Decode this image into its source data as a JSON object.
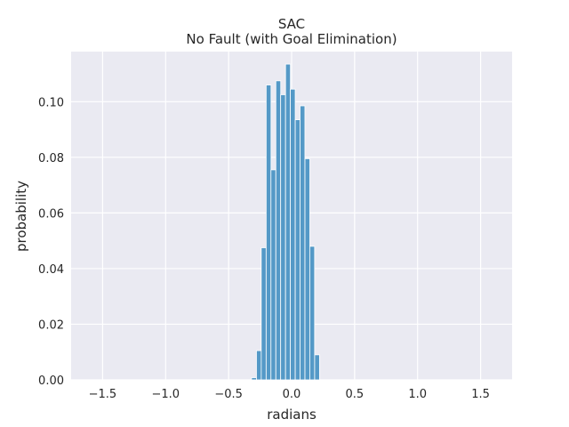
{
  "chart_data": {
    "type": "bar",
    "title": "SAC",
    "subtitle": "No Fault (with Goal Elimination)",
    "xlabel": "radians",
    "ylabel": "probability",
    "xlim": [
      -1.75,
      1.75
    ],
    "ylim": [
      0,
      0.118
    ],
    "xticks": [
      -1.5,
      -1.0,
      -0.5,
      0.0,
      0.5,
      1.0,
      1.5
    ],
    "xtick_labels": [
      "−1.5",
      "−1.0",
      "−0.5",
      "0.0",
      "0.5",
      "1.0",
      "1.5"
    ],
    "yticks": [
      0.0,
      0.02,
      0.04,
      0.06,
      0.08,
      0.1
    ],
    "ytick_labels": [
      "0.00",
      "0.02",
      "0.04",
      "0.06",
      "0.08",
      "0.10"
    ],
    "grid": true,
    "bin_width": 0.0385,
    "bins": [
      {
        "x": -0.318,
        "value": 0.0008
      },
      {
        "x": -0.279,
        "value": 0.0105
      },
      {
        "x": -0.241,
        "value": 0.0475
      },
      {
        "x": -0.202,
        "value": 0.106
      },
      {
        "x": -0.164,
        "value": 0.0755
      },
      {
        "x": -0.125,
        "value": 0.1075
      },
      {
        "x": -0.087,
        "value": 0.1025
      },
      {
        "x": -0.048,
        "value": 0.1135
      },
      {
        "x": -0.01,
        "value": 0.1045
      },
      {
        "x": 0.029,
        "value": 0.0935
      },
      {
        "x": 0.067,
        "value": 0.0985
      },
      {
        "x": 0.106,
        "value": 0.0795
      },
      {
        "x": 0.144,
        "value": 0.048
      },
      {
        "x": 0.183,
        "value": 0.009
      }
    ],
    "colors": {
      "background": "#eaeaf2",
      "grid": "#ffffff",
      "bar": "#5499c7",
      "bar_edge": "#ffffff"
    }
  }
}
